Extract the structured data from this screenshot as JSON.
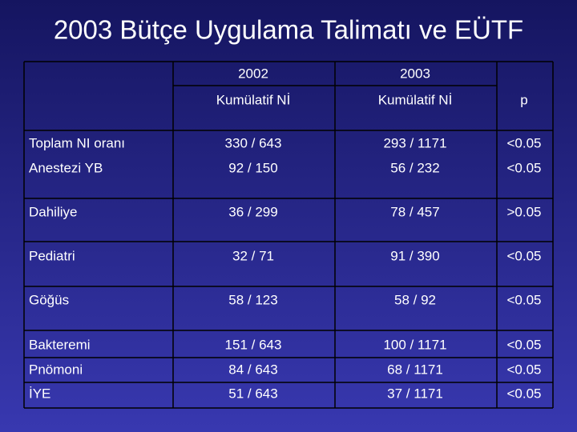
{
  "title": "2003 Bütçe Uygulama Talimatı ve EÜTF",
  "table": {
    "header": [
      [
        "2002",
        "Kumülatif Nİ"
      ],
      [
        "2003",
        "Kumülatif Nİ"
      ],
      [
        "p"
      ]
    ],
    "rows": [
      [
        "Toplam NI oranı",
        "330 / 643",
        "293 / 1171",
        "<0.05"
      ],
      [
        "Anestezi YB",
        "92 / 150",
        "56 / 232",
        "<0.05"
      ],
      [
        "Dahiliye",
        "36 / 299",
        "78 / 457",
        ">0.05"
      ],
      [
        "Pediatri",
        "32 / 71",
        "91 / 390",
        "<0.05"
      ],
      [
        "Göğüs",
        "58 / 123",
        "58 / 92",
        "<0.05"
      ],
      [
        "Bakteremi",
        "151 / 643",
        "100 / 1171",
        "<0.05"
      ],
      [
        "Pnömoni",
        "84 / 643",
        "68 / 1171",
        "<0.05"
      ],
      [
        "İYE",
        "51 / 643",
        "37 / 1171",
        "<0.05"
      ]
    ]
  }
}
